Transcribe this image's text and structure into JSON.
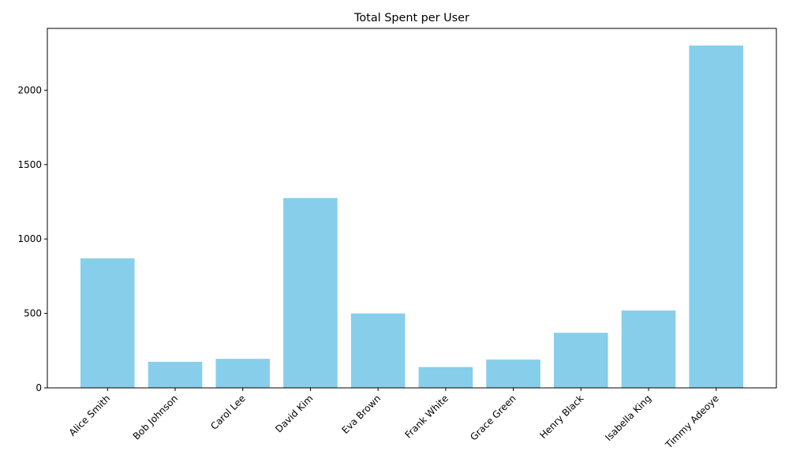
{
  "chart_data": {
    "type": "bar",
    "title": "Total Spent per User",
    "xlabel": "",
    "ylabel": "",
    "categories": [
      "Alice Smith",
      "Bob Johnson",
      "Carol Lee",
      "David Kim",
      "Eva Brown",
      "Frank White",
      "Grace Green",
      "Henry Black",
      "Isabella King",
      "Timmy Adeoye"
    ],
    "values": [
      870,
      175,
      195,
      1275,
      500,
      140,
      190,
      370,
      520,
      2300
    ],
    "ylim": [
      0,
      2415
    ],
    "yticks": [
      0,
      500,
      1000,
      1500,
      2000
    ],
    "bar_color": "#87CEEB",
    "grid": false,
    "legend": "none"
  }
}
